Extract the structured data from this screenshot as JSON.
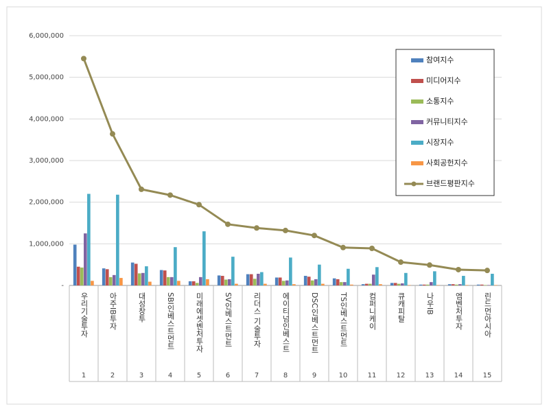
{
  "chart_data": {
    "type": "bar",
    "categories": [
      "우리기술투자",
      "아주IB투자",
      "대성창투",
      "SBI인베스트먼트",
      "미래에셋벤처투자",
      "SV인베스트먼트",
      "리더스 기술투자",
      "에이티넘인베스트",
      "DSC인베스트먼트",
      "TS인베스트먼트",
      "컴퍼니케이",
      "큐캐피탈",
      "나우IB",
      "엠벤처투자",
      "린드먼아시아"
    ],
    "rank_labels": [
      "1",
      "2",
      "3",
      "4",
      "5",
      "6",
      "7",
      "8",
      "9",
      "10",
      "11",
      "12",
      "13",
      "14",
      "15"
    ],
    "series": [
      {
        "name": "참여지수",
        "color": "#4f81bd",
        "values": [
          980000,
          410000,
          550000,
          370000,
          100000,
          240000,
          270000,
          190000,
          230000,
          170000,
          30000,
          60000,
          20000,
          30000,
          20000
        ]
      },
      {
        "name": "미디어지수",
        "color": "#c0504d",
        "values": [
          450000,
          390000,
          520000,
          360000,
          100000,
          230000,
          270000,
          190000,
          210000,
          150000,
          40000,
          60000,
          20000,
          30000,
          20000
        ]
      },
      {
        "name": "소통지수",
        "color": "#9bbb59",
        "values": [
          430000,
          200000,
          290000,
          200000,
          60000,
          140000,
          160000,
          110000,
          120000,
          80000,
          40000,
          40000,
          20000,
          20000,
          10000
        ]
      },
      {
        "name": "커뮤니티지수",
        "color": "#8064a2",
        "values": [
          1250000,
          250000,
          300000,
          200000,
          200000,
          150000,
          280000,
          120000,
          150000,
          80000,
          260000,
          50000,
          80000,
          30000,
          10000
        ]
      },
      {
        "name": "시장지수",
        "color": "#4bacc6",
        "values": [
          2200000,
          2180000,
          460000,
          920000,
          1300000,
          690000,
          320000,
          670000,
          500000,
          400000,
          440000,
          300000,
          340000,
          230000,
          280000
        ]
      },
      {
        "name": "사회공헌지수",
        "color": "#f79646",
        "values": [
          110000,
          180000,
          90000,
          110000,
          150000,
          40000,
          40000,
          30000,
          40000,
          20000,
          30000,
          10000,
          10000,
          10000,
          10000
        ]
      },
      {
        "name": "브랜드평판지수",
        "color": "#948a54",
        "type": "line",
        "values": [
          5450000,
          3640000,
          2310000,
          2170000,
          1940000,
          1470000,
          1380000,
          1320000,
          1200000,
          910000,
          890000,
          560000,
          490000,
          380000,
          360000
        ]
      }
    ],
    "ylim": [
      0,
      6000000
    ],
    "yticks": [
      {
        "value": 0,
        "label": "-"
      },
      {
        "value": 1000000,
        "label": "1,000,000"
      },
      {
        "value": 2000000,
        "label": "2,000,000"
      },
      {
        "value": 3000000,
        "label": "3,000,000"
      },
      {
        "value": 4000000,
        "label": "4,000,000"
      },
      {
        "value": 5000000,
        "label": "5,000,000"
      },
      {
        "value": 6000000,
        "label": "6,000,000"
      }
    ],
    "grid": true,
    "legend": "upper right"
  }
}
